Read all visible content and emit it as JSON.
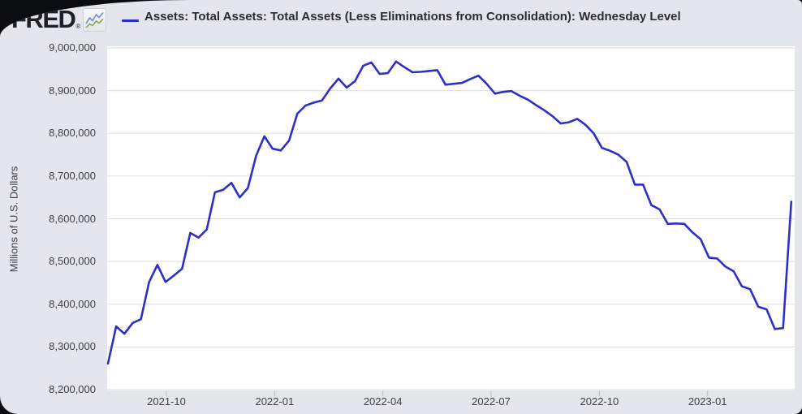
{
  "brand": {
    "logo_text": "FRED",
    "registered_mark": "®",
    "logo_icon": "sparkline-icon"
  },
  "legend": {
    "swatch_color": "#2e2ec9",
    "position": "top-left"
  },
  "colors": {
    "page_backdrop": "#0b0c0f",
    "card_background": "#e3e6ec",
    "plot_background": "#ffffff",
    "gridline": "#dcdee1",
    "series_line": "#2e2ec9",
    "title_text": "#2d2d30",
    "axis_text": "#3f3f44",
    "logo_text": "#1d2026",
    "tick_mark": "#b9bcc0",
    "logo_icon_blue": "#6f87d8",
    "logo_icon_green": "#8aa65a"
  },
  "chart_data": {
    "type": "line",
    "title": "Assets: Total Assets: Total Assets (Less Eliminations from Consolidation): Wednesday Level",
    "xlabel": "",
    "ylabel": "Millions of U.S. Dollars",
    "frequency": "weekly (Wednesday level)",
    "grid": "horizontal",
    "legend_position": "top-left",
    "ylim": [
      8200000,
      9000000
    ],
    "xlim": [
      "2021-08-11",
      "2023-03-15"
    ],
    "y_tick_values": [
      9000000,
      8900000,
      8800000,
      8700000,
      8600000,
      8500000,
      8400000,
      8300000,
      8200000
    ],
    "y_tick_labels": [
      "9,000,000",
      "8,900,000",
      "8,800,000",
      "8,700,000",
      "8,600,000",
      "8,500,000",
      "8,400,000",
      "8,300,000",
      "8,200,000"
    ],
    "x_tick_labels": [
      "2021-10",
      "2022-01",
      "2022-04",
      "2022-07",
      "2022-10",
      "2023-01"
    ],
    "series": [
      {
        "name": "Assets: Total Assets: Total Assets (Less Eliminations from Consolidation): Wednesday Level",
        "color": "#2e2ec9",
        "x": [
          "2021-08-11",
          "2021-08-18",
          "2021-08-25",
          "2021-09-01",
          "2021-09-08",
          "2021-09-15",
          "2021-09-22",
          "2021-09-29",
          "2021-10-06",
          "2021-10-13",
          "2021-10-20",
          "2021-10-27",
          "2021-11-03",
          "2021-11-10",
          "2021-11-17",
          "2021-11-24",
          "2021-12-01",
          "2021-12-08",
          "2021-12-15",
          "2021-12-22",
          "2021-12-29",
          "2022-01-05",
          "2022-01-12",
          "2022-01-19",
          "2022-01-26",
          "2022-02-02",
          "2022-02-09",
          "2022-02-16",
          "2022-02-23",
          "2022-03-02",
          "2022-03-09",
          "2022-03-16",
          "2022-03-23",
          "2022-03-30",
          "2022-04-06",
          "2022-04-13",
          "2022-04-20",
          "2022-04-27",
          "2022-05-04",
          "2022-05-11",
          "2022-05-18",
          "2022-05-25",
          "2022-06-01",
          "2022-06-08",
          "2022-06-15",
          "2022-06-22",
          "2022-06-29",
          "2022-07-06",
          "2022-07-13",
          "2022-07-20",
          "2022-07-27",
          "2022-08-03",
          "2022-08-10",
          "2022-08-17",
          "2022-08-24",
          "2022-08-31",
          "2022-09-07",
          "2022-09-14",
          "2022-09-21",
          "2022-09-28",
          "2022-10-05",
          "2022-10-12",
          "2022-10-19",
          "2022-10-26",
          "2022-11-02",
          "2022-11-09",
          "2022-11-16",
          "2022-11-23",
          "2022-11-30",
          "2022-12-07",
          "2022-12-14",
          "2022-12-21",
          "2022-12-28",
          "2023-01-04",
          "2023-01-11",
          "2023-01-18",
          "2023-01-25",
          "2023-02-01",
          "2023-02-08",
          "2023-02-15",
          "2023-02-22",
          "2023-03-01",
          "2023-03-08",
          "2023-03-15"
        ],
        "values": [
          8261000,
          8348000,
          8331000,
          8356000,
          8365000,
          8452000,
          8492000,
          8452000,
          8467000,
          8483000,
          8567000,
          8556000,
          8575000,
          8662000,
          8668000,
          8684000,
          8650000,
          8672000,
          8748000,
          8793000,
          8764000,
          8760000,
          8783000,
          8846000,
          8865000,
          8872000,
          8877000,
          8905000,
          8928000,
          8907000,
          8922000,
          8958000,
          8966000,
          8939000,
          8941000,
          8968000,
          8955000,
          8943000,
          8944000,
          8946000,
          8948000,
          8914000,
          8916000,
          8918000,
          8927000,
          8935000,
          8916000,
          8893000,
          8897000,
          8899000,
          8888000,
          8879000,
          8866000,
          8854000,
          8840000,
          8823000,
          8826000,
          8834000,
          8820000,
          8800000,
          8766000,
          8759000,
          8750000,
          8733000,
          8680000,
          8680000,
          8632000,
          8622000,
          8588000,
          8589000,
          8588000,
          8568000,
          8552000,
          8509000,
          8507000,
          8488000,
          8477000,
          8442000,
          8435000,
          8394000,
          8388000,
          8342000,
          8344000,
          8640000
        ]
      }
    ]
  }
}
